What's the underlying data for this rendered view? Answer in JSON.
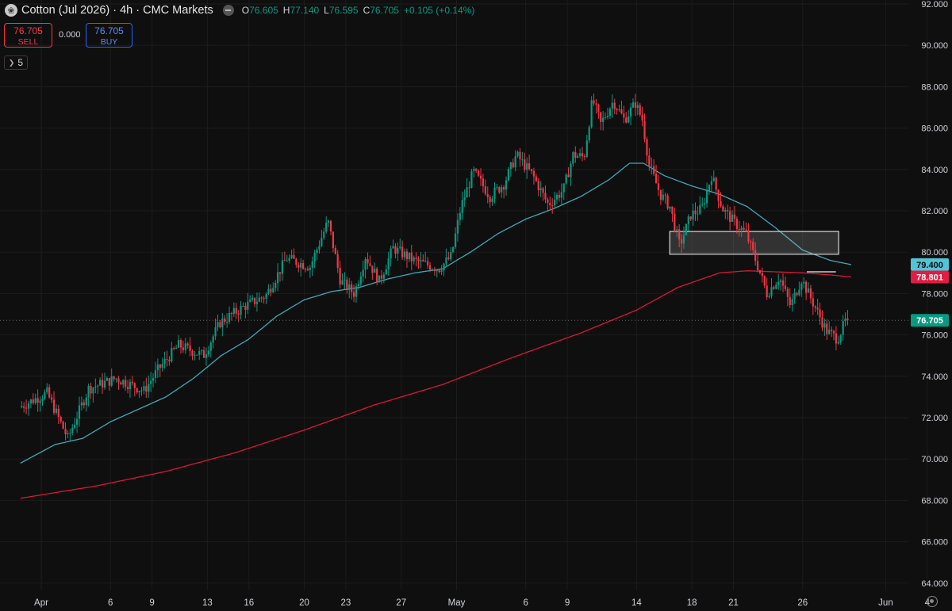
{
  "header": {
    "title": "Cotton (Jul 2026) · 4h · CMC Markets",
    "ohlc": [
      {
        "k": "O",
        "v": "76.605"
      },
      {
        "k": "H",
        "v": "77.140"
      },
      {
        "k": "L",
        "v": "76.595"
      },
      {
        "k": "C",
        "v": "76.705"
      }
    ],
    "change": "+0.105 (+0.14%)"
  },
  "trade": {
    "sell_price": "76.705",
    "sell_label": "SELL",
    "spread": "0.000",
    "buy_price": "76.705",
    "buy_label": "BUY"
  },
  "indicators_count": "5",
  "colors": {
    "background": "#0f0f0f",
    "up": "#089981",
    "down": "#f23645",
    "ma_fast": "#3fa8b7",
    "ma_slow": "#d8173a",
    "buy_blue": "#2962ff",
    "grid": "#1c1c1c"
  },
  "chart_data": {
    "type": "candlestick",
    "symbol": "Cotton (Jul 2026)",
    "timeframe": "4h",
    "ylim": [
      64,
      92
    ],
    "y_ticks": [
      "92.000",
      "90.000",
      "88.000",
      "86.000",
      "84.000",
      "82.000",
      "80.000",
      "78.000",
      "76.000",
      "74.000",
      "72.000",
      "70.000",
      "68.000",
      "66.000",
      "64.000"
    ],
    "x_ticks": [
      {
        "label": "Apr",
        "day": 1
      },
      {
        "label": "6",
        "day": 6
      },
      {
        "label": "9",
        "day": 9
      },
      {
        "label": "13",
        "day": 13
      },
      {
        "label": "16",
        "day": 16
      },
      {
        "label": "20",
        "day": 20
      },
      {
        "label": "23",
        "day": 23
      },
      {
        "label": "27",
        "day": 27
      },
      {
        "label": "May",
        "day": 31
      },
      {
        "label": "6",
        "day": 36
      },
      {
        "label": "9",
        "day": 39
      },
      {
        "label": "14",
        "day": 44
      },
      {
        "label": "18",
        "day": 48
      },
      {
        "label": "21",
        "day": 51
      },
      {
        "label": "26",
        "day": 56
      },
      {
        "label": "Jun",
        "day": 62
      },
      {
        "label": "4",
        "day": 65
      }
    ],
    "last_price": "76.705",
    "price_labels": [
      {
        "name": "ma-fast",
        "value": "79.400"
      },
      {
        "name": "ma-slow",
        "value": "78.801"
      },
      {
        "name": "last",
        "value": "76.705"
      }
    ],
    "zone": {
      "x_start_day": 46.4,
      "x_end_day": 58.6,
      "y_low": 79.9,
      "y_high": 81.0
    },
    "level_line": {
      "x_start_day": 56.3,
      "x_end_day": 58.4,
      "y": 79.05
    },
    "anchors": [
      [
        -0.5,
        72.5
      ],
      [
        1.5,
        73.2
      ],
      [
        3,
        71.0
      ],
      [
        4.5,
        73.4
      ],
      [
        6.5,
        73.9
      ],
      [
        8.5,
        73.3
      ],
      [
        9.5,
        74.3
      ],
      [
        11,
        75.5
      ],
      [
        12.8,
        75.0
      ],
      [
        14,
        76.6
      ],
      [
        15.8,
        77.4
      ],
      [
        17.3,
        77.9
      ],
      [
        18.8,
        79.7
      ],
      [
        20.5,
        79.3
      ],
      [
        21.8,
        81.5
      ],
      [
        22.7,
        78.6
      ],
      [
        23.7,
        78.0
      ],
      [
        24.5,
        79.8
      ],
      [
        25.5,
        78.6
      ],
      [
        26.5,
        80.2
      ],
      [
        28,
        79.6
      ],
      [
        29.8,
        79.2
      ],
      [
        30.7,
        79.8
      ],
      [
        31.4,
        82.2
      ],
      [
        32.3,
        83.9
      ],
      [
        33.5,
        82.7
      ],
      [
        34.5,
        83.3
      ],
      [
        35.4,
        84.7
      ],
      [
        36.6,
        83.7
      ],
      [
        37.7,
        82.3
      ],
      [
        38.8,
        83.0
      ],
      [
        39.5,
        84.7
      ],
      [
        40.3,
        84.6
      ],
      [
        40.9,
        87.4
      ],
      [
        41.5,
        86.2
      ],
      [
        42.4,
        87.3
      ],
      [
        43.2,
        86.4
      ],
      [
        44,
        87.2
      ],
      [
        44.5,
        86.4
      ],
      [
        45,
        84.2
      ],
      [
        45.8,
        82.8
      ],
      [
        46.5,
        82.2
      ],
      [
        47.2,
        80.3
      ],
      [
        48,
        81.8
      ],
      [
        48.8,
        82.1
      ],
      [
        49.5,
        83.7
      ],
      [
        50.3,
        82.1
      ],
      [
        51.2,
        81.4
      ],
      [
        52,
        80.9
      ],
      [
        52.8,
        79.4
      ],
      [
        53.5,
        78.0
      ],
      [
        54.4,
        78.8
      ],
      [
        55.2,
        77.4
      ],
      [
        56,
        78.7
      ],
      [
        56.8,
        77.6
      ],
      [
        57.8,
        76.2
      ],
      [
        58.6,
        75.8
      ],
      [
        59.2,
        76.705
      ]
    ],
    "ma_fast": [
      [
        -0.5,
        69.8
      ],
      [
        2,
        70.7
      ],
      [
        4,
        71.0
      ],
      [
        6,
        71.8
      ],
      [
        8,
        72.4
      ],
      [
        10,
        73.0
      ],
      [
        12,
        73.9
      ],
      [
        14,
        75.0
      ],
      [
        16,
        75.8
      ],
      [
        18,
        76.9
      ],
      [
        20,
        77.7
      ],
      [
        22,
        78.1
      ],
      [
        24,
        78.3
      ],
      [
        26,
        78.7
      ],
      [
        28,
        79.0
      ],
      [
        30,
        79.2
      ],
      [
        32,
        80.0
      ],
      [
        34,
        80.9
      ],
      [
        36,
        81.6
      ],
      [
        38,
        82.1
      ],
      [
        40,
        82.7
      ],
      [
        42,
        83.5
      ],
      [
        43.5,
        84.3
      ],
      [
        44.5,
        84.3
      ],
      [
        46,
        83.7
      ],
      [
        48,
        83.2
      ],
      [
        50,
        82.8
      ],
      [
        52,
        82.2
      ],
      [
        54,
        81.2
      ],
      [
        56,
        80.1
      ],
      [
        58,
        79.6
      ],
      [
        59.5,
        79.4
      ]
    ],
    "ma_slow": [
      [
        -0.5,
        68.1
      ],
      [
        5,
        68.7
      ],
      [
        10,
        69.4
      ],
      [
        15,
        70.3
      ],
      [
        20,
        71.4
      ],
      [
        25,
        72.6
      ],
      [
        30,
        73.6
      ],
      [
        35,
        74.9
      ],
      [
        40,
        76.1
      ],
      [
        44,
        77.2
      ],
      [
        47,
        78.3
      ],
      [
        50,
        79.0
      ],
      [
        52,
        79.1
      ],
      [
        54,
        79.05
      ],
      [
        56,
        79.0
      ],
      [
        58,
        78.9
      ],
      [
        59.5,
        78.801
      ]
    ]
  }
}
